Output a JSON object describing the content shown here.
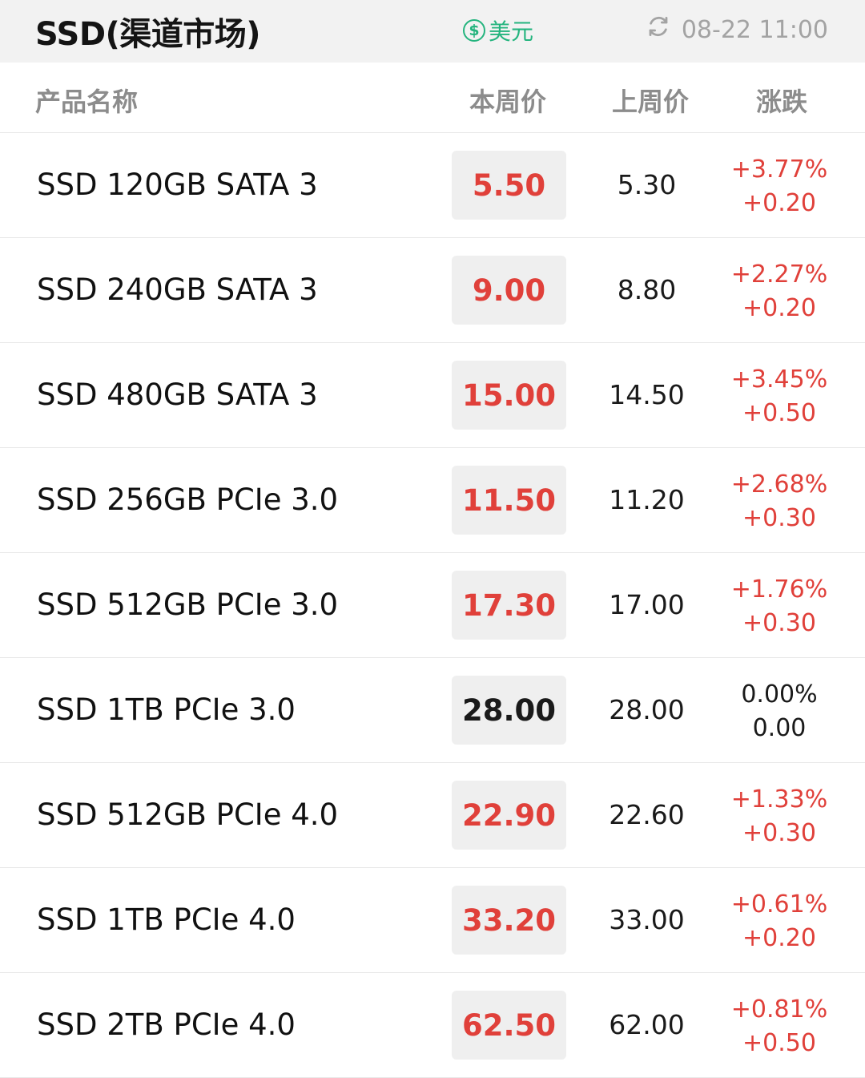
{
  "title": "SSD(渠道市场)",
  "currency_label": "美元",
  "currency_icon": "dollar-circle-icon",
  "refresh_icon": "refresh-icon",
  "updated_time": "08-22 11:00",
  "accent_color": "#e0403a",
  "green_color": "#24b47e",
  "columns": {
    "name": "产品名称",
    "current": "本周价",
    "previous": "上周价",
    "change": "涨跌"
  },
  "rows": [
    {
      "name": "SSD 120GB SATA 3",
      "current": "5.50",
      "previous": "5.30",
      "change_pct": "+3.77%",
      "change_abs": "+0.20"
    },
    {
      "name": "SSD 240GB SATA 3",
      "current": "9.00",
      "previous": "8.80",
      "change_pct": "+2.27%",
      "change_abs": "+0.20"
    },
    {
      "name": "SSD 480GB SATA 3",
      "current": "15.00",
      "previous": "14.50",
      "change_pct": "+3.45%",
      "change_abs": "+0.50"
    },
    {
      "name": "SSD 256GB PCIe 3.0",
      "current": "11.50",
      "previous": "11.20",
      "change_pct": "+2.68%",
      "change_abs": "+0.30"
    },
    {
      "name": "SSD 512GB PCIe 3.0",
      "current": "17.30",
      "previous": "17.00",
      "change_pct": "+1.76%",
      "change_abs": "+0.30"
    },
    {
      "name": "SSD 1TB PCIe 3.0",
      "current": "28.00",
      "previous": "28.00",
      "change_pct": "0.00%",
      "change_abs": "0.00"
    },
    {
      "name": "SSD 512GB PCIe 4.0",
      "current": "22.90",
      "previous": "22.60",
      "change_pct": "+1.33%",
      "change_abs": "+0.30"
    },
    {
      "name": "SSD 1TB PCIe 4.0",
      "current": "33.20",
      "previous": "33.00",
      "change_pct": "+0.61%",
      "change_abs": "+0.20"
    },
    {
      "name": "SSD 2TB PCIe 4.0",
      "current": "62.50",
      "previous": "62.00",
      "change_pct": "+0.81%",
      "change_abs": "+0.50"
    }
  ]
}
